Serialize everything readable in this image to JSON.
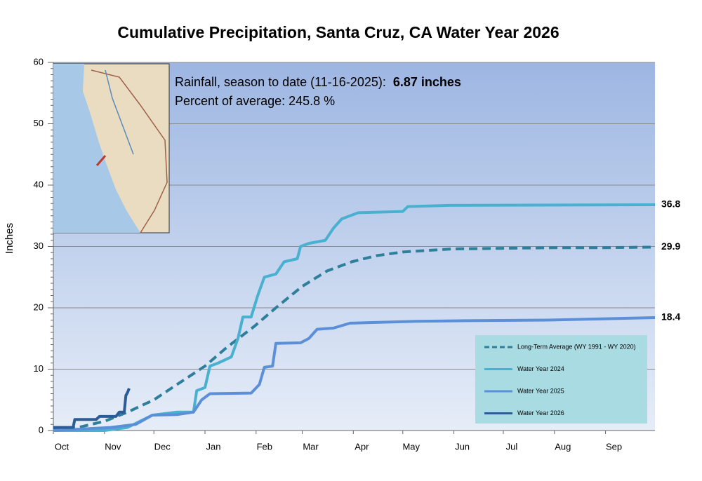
{
  "chart_data": {
    "type": "line",
    "title": "Cumulative Precipitation, Santa Cruz, CA Water Year 2026",
    "y_label": "Inches",
    "annotations": [
      "Rainfall, season to date (11-16-2025):",
      "6.87 inches",
      "Percent of average: 245.8 %"
    ],
    "xlim": [
      0,
      365
    ],
    "xticks": [
      {
        "value": 0,
        "label": "Oct"
      },
      {
        "value": 31,
        "label": "Nov"
      },
      {
        "value": 61,
        "label": "Dec"
      },
      {
        "value": 92,
        "label": "Jan"
      },
      {
        "value": 123,
        "label": "Feb"
      },
      {
        "value": 151,
        "label": "Mar"
      },
      {
        "value": 182,
        "label": "Apr"
      },
      {
        "value": 212,
        "label": "May"
      },
      {
        "value": 243,
        "label": "Jun"
      },
      {
        "value": 273,
        "label": "Jul"
      },
      {
        "value": 304,
        "label": "Aug"
      },
      {
        "value": 335,
        "label": "Sep"
      }
    ],
    "ylim": [
      0,
      60
    ],
    "yticks": [
      0,
      10,
      20,
      30,
      40,
      50,
      60
    ],
    "grid": true,
    "legend": "lower right",
    "series": [
      {
        "name": "Long-Term Average (WY 1991 - WY 2020)",
        "color": "#2e7f9a",
        "dashed": true,
        "x": [
          0,
          15,
          31,
          45,
          61,
          75,
          92,
          105,
          122,
          135,
          151,
          166,
          181,
          196,
          212,
          242,
          273,
          304,
          334,
          365
        ],
        "values": [
          0.2,
          0.5,
          1.5,
          3,
          5,
          7.5,
          10.5,
          13.5,
          17,
          20,
          23.5,
          26,
          27.5,
          28.5,
          29.1,
          29.6,
          29.7,
          29.8,
          29.8,
          29.9
        ]
      },
      {
        "name": "Water Year 2024",
        "color": "#4ab0d0",
        "dashed": false,
        "x": [
          0,
          31,
          45,
          60,
          75,
          85,
          87,
          92,
          95,
          100,
          108,
          112,
          115,
          120,
          124,
          128,
          135,
          140,
          148,
          150,
          155,
          165,
          170,
          175,
          185,
          212,
          215,
          240,
          365
        ],
        "values": [
          0,
          0,
          0.5,
          2.5,
          3,
          3,
          6.5,
          7,
          10.5,
          11,
          12,
          15,
          18.5,
          18.5,
          22,
          25,
          25.5,
          27.5,
          28,
          30,
          30.5,
          31,
          33,
          34.5,
          35.5,
          35.7,
          36.5,
          36.7,
          36.8
        ]
      },
      {
        "name": "Water Year 2025",
        "color": "#5b8fd8",
        "dashed": false,
        "x": [
          0,
          35,
          50,
          60,
          75,
          85,
          90,
          95,
          120,
          125,
          128,
          133,
          135,
          150,
          155,
          160,
          170,
          180,
          220,
          250,
          300,
          365
        ],
        "values": [
          0,
          0.5,
          1,
          2.5,
          2.6,
          3,
          5,
          6,
          6.1,
          7.5,
          10.3,
          10.5,
          14.2,
          14.3,
          15,
          16.5,
          16.7,
          17.5,
          17.8,
          17.9,
          18.0,
          18.4
        ]
      },
      {
        "name": "Water Year 2026",
        "color": "#2b5c96",
        "dashed": false,
        "x": [
          0,
          12,
          13,
          26,
          28,
          38,
          40,
          43,
          44,
          45,
          46
        ],
        "values": [
          0.5,
          0.5,
          1.8,
          1.8,
          2.3,
          2.3,
          3,
          3,
          5.7,
          6.2,
          6.87
        ]
      }
    ]
  }
}
